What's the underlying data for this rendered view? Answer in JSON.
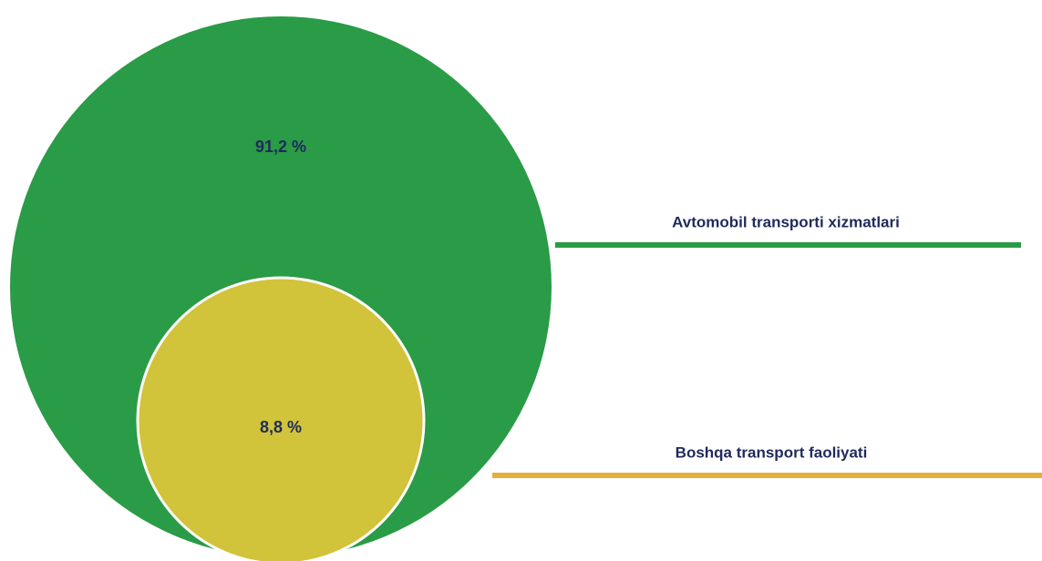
{
  "chart_data": {
    "type": "nested-circles",
    "categories": [
      "Avtomobil transporti xizmatlari",
      "Boshqa transport faoliyati"
    ],
    "values": [
      91.2,
      8.8
    ],
    "value_labels": [
      "91,2 %",
      "8,8 %"
    ],
    "colors": [
      "#2a9b46",
      "#d1c33a"
    ],
    "legend_colors": [
      "#2a9b46",
      "#e3b03c"
    ]
  }
}
